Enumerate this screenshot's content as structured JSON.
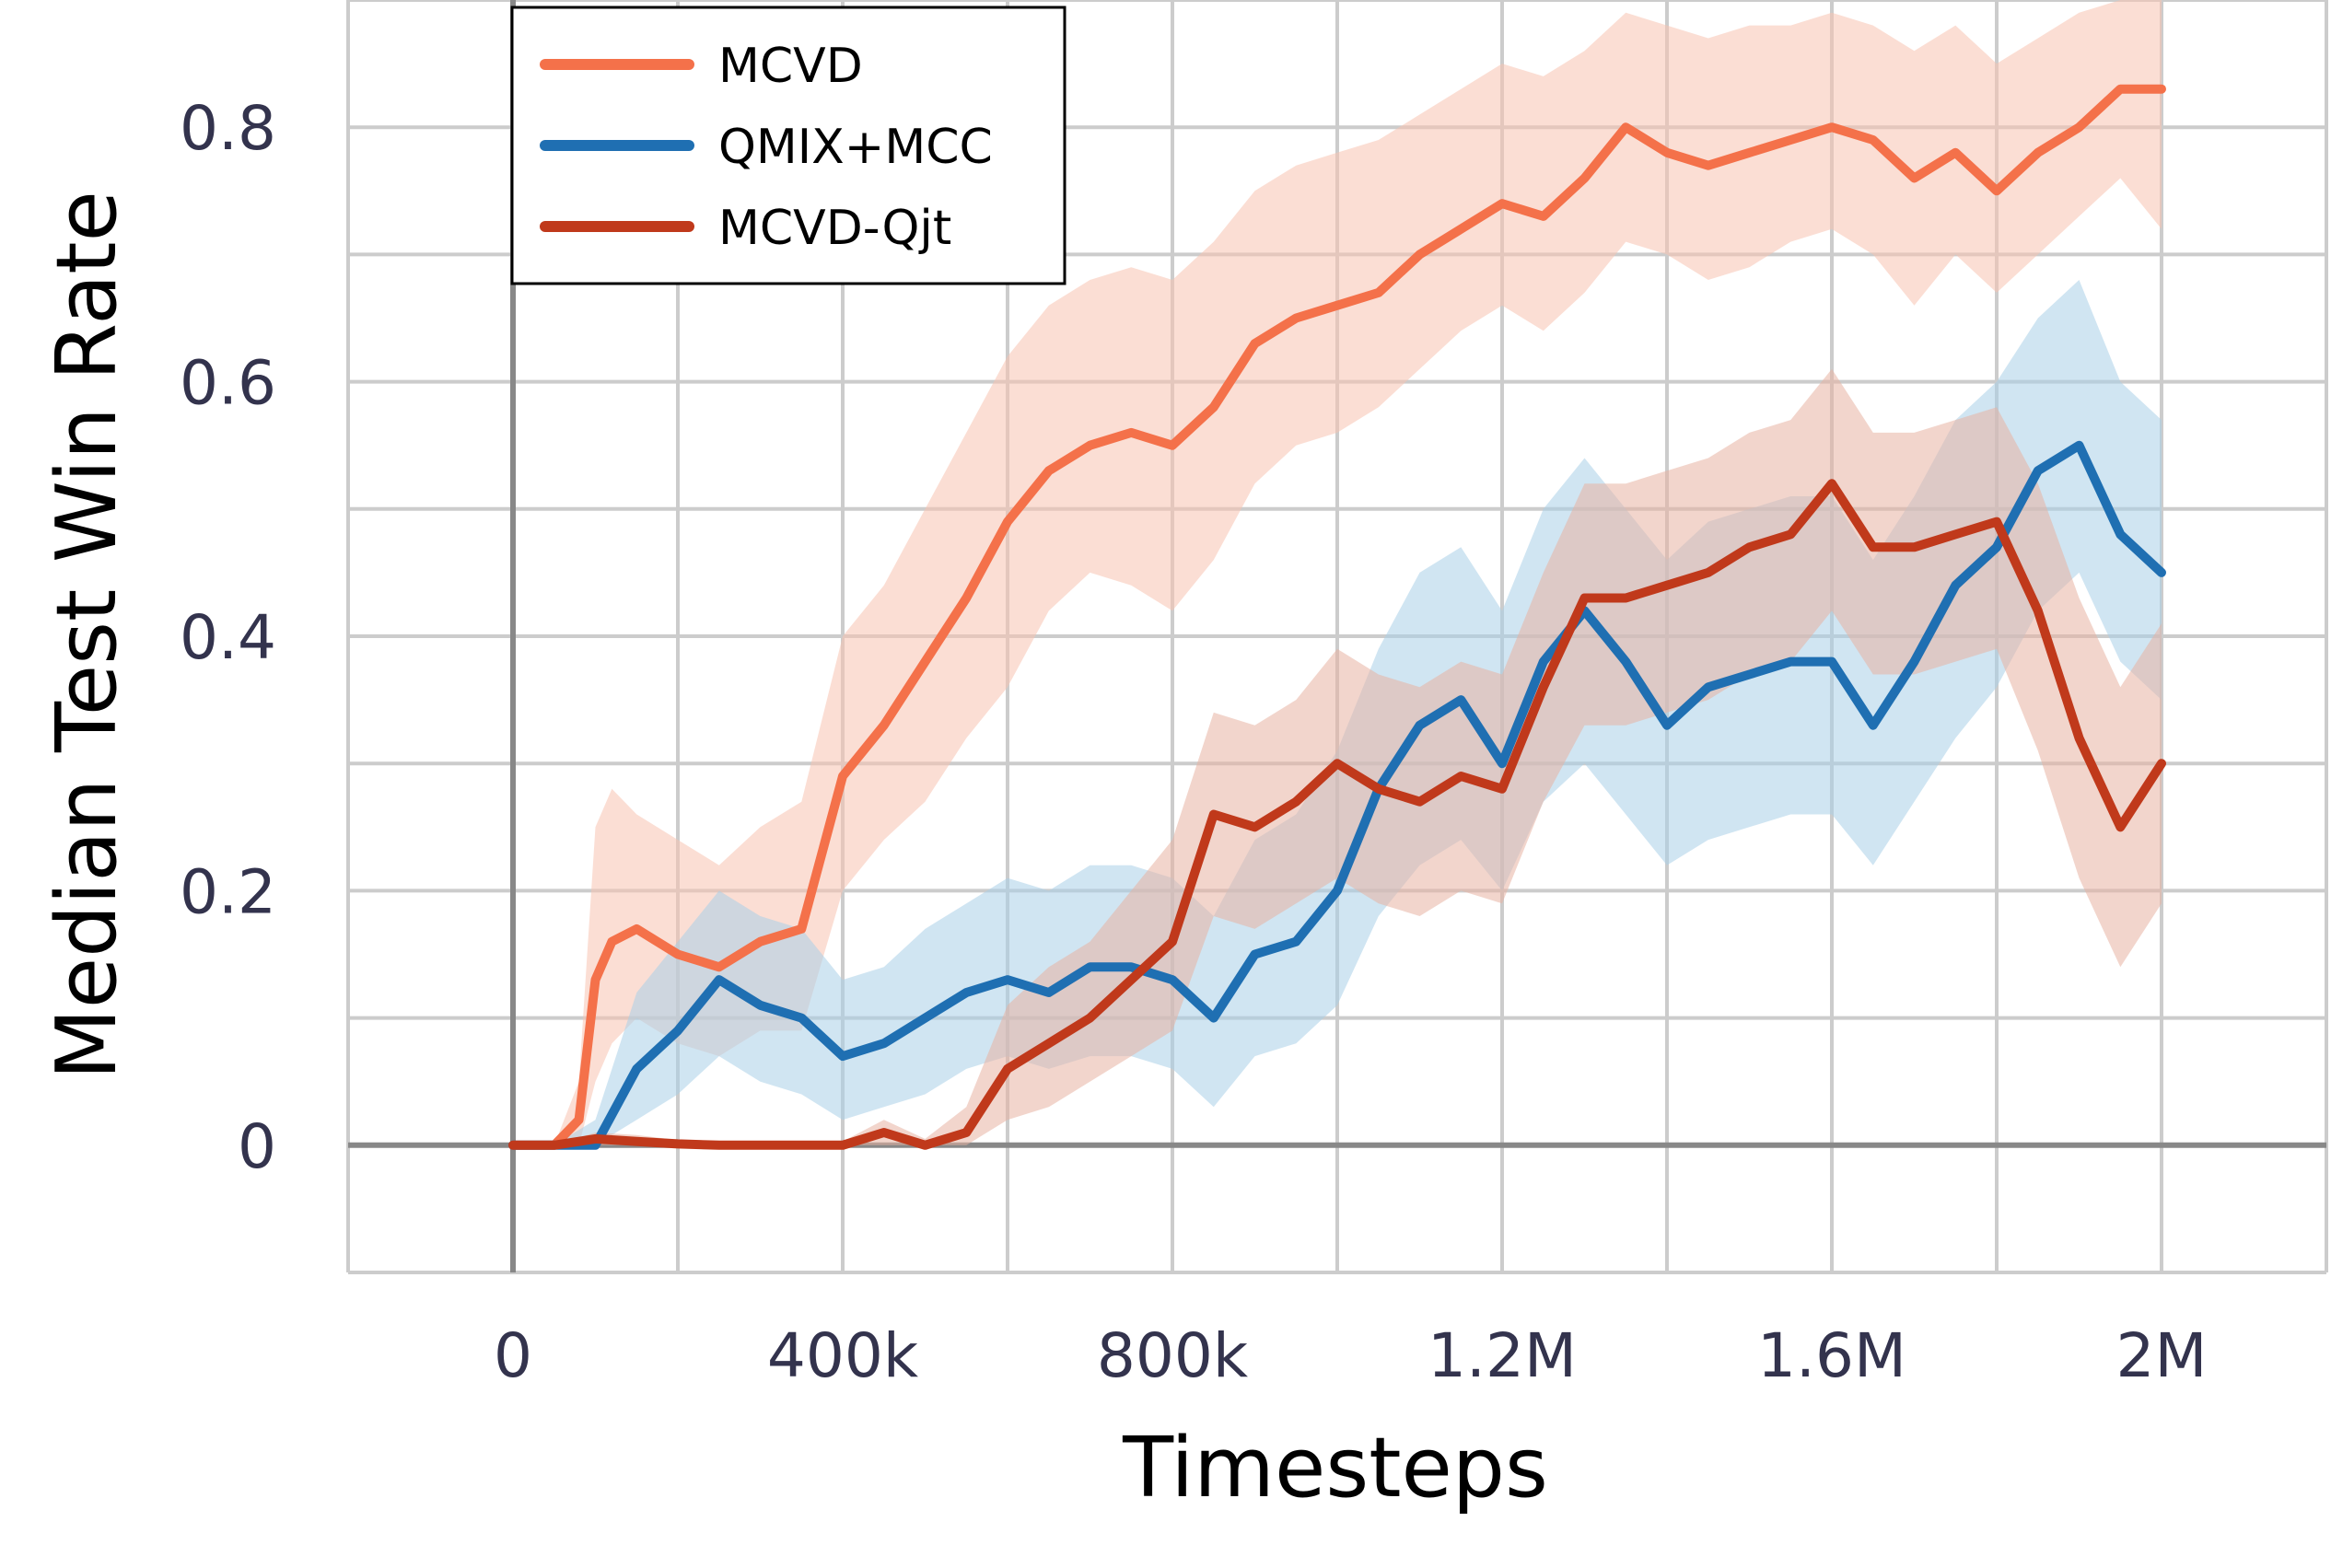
{
  "chart_data": {
    "type": "line",
    "title": "",
    "xlabel": "Timesteps",
    "ylabel": "Median Test Win Rate",
    "xlim": [
      -200000,
      2200000
    ],
    "ylim": [
      -0.1,
      0.9
    ],
    "xticks": [
      0,
      400000,
      800000,
      1200000,
      1600000,
      2000000
    ],
    "xtick_labels": [
      "0",
      "400k",
      "800k",
      "1.2M",
      "1.6M",
      "2M"
    ],
    "yticks": [
      0,
      0.2,
      0.4,
      0.6,
      0.8
    ],
    "ytick_labels": [
      "0",
      "0.2",
      "0.4",
      "0.6",
      "0.8"
    ],
    "grid": true,
    "legend_position": "top-left",
    "series": [
      {
        "name": "MCVD",
        "color": "#f4714a",
        "band_color": "#f7c3b0",
        "x": [
          0,
          50000,
          80000,
          100000,
          120000,
          150000,
          200000,
          250000,
          300000,
          350000,
          400000,
          450000,
          500000,
          550000,
          600000,
          650000,
          700000,
          750000,
          800000,
          850000,
          900000,
          950000,
          1000000,
          1050000,
          1100000,
          1150000,
          1200000,
          1250000,
          1300000,
          1350000,
          1400000,
          1450000,
          1500000,
          1550000,
          1600000,
          1650000,
          1700000,
          1750000,
          1800000,
          1850000,
          1900000,
          1950000,
          2000000
        ],
        "y": [
          0.0,
          0.0,
          0.02,
          0.13,
          0.16,
          0.17,
          0.15,
          0.14,
          0.16,
          0.17,
          0.29,
          0.33,
          0.38,
          0.43,
          0.49,
          0.53,
          0.55,
          0.56,
          0.55,
          0.58,
          0.63,
          0.65,
          0.66,
          0.67,
          0.7,
          0.72,
          0.74,
          0.73,
          0.76,
          0.8,
          0.78,
          0.77,
          0.78,
          0.79,
          0.8,
          0.79,
          0.76,
          0.78,
          0.75,
          0.78,
          0.8,
          0.83,
          0.83
        ],
        "lower": [
          0.0,
          0.0,
          0.0,
          0.05,
          0.08,
          0.1,
          0.08,
          0.07,
          0.09,
          0.09,
          0.2,
          0.24,
          0.27,
          0.32,
          0.36,
          0.42,
          0.45,
          0.44,
          0.42,
          0.46,
          0.52,
          0.55,
          0.56,
          0.58,
          0.61,
          0.64,
          0.66,
          0.64,
          0.67,
          0.71,
          0.7,
          0.68,
          0.69,
          0.71,
          0.72,
          0.7,
          0.66,
          0.7,
          0.67,
          0.7,
          0.73,
          0.76,
          0.72
        ],
        "upper": [
          0.0,
          0.0,
          0.05,
          0.25,
          0.28,
          0.26,
          0.24,
          0.22,
          0.25,
          0.27,
          0.4,
          0.44,
          0.5,
          0.56,
          0.62,
          0.66,
          0.68,
          0.69,
          0.68,
          0.71,
          0.75,
          0.77,
          0.78,
          0.79,
          0.81,
          0.83,
          0.85,
          0.84,
          0.86,
          0.89,
          0.88,
          0.87,
          0.88,
          0.88,
          0.89,
          0.88,
          0.86,
          0.88,
          0.85,
          0.87,
          0.89,
          0.9,
          0.9
        ]
      },
      {
        "name": "QMIX+MCC",
        "color": "#1f6fb2",
        "band_color": "#a9d0e8",
        "x": [
          0,
          50000,
          100000,
          150000,
          200000,
          250000,
          300000,
          350000,
          400000,
          450000,
          500000,
          550000,
          600000,
          650000,
          700000,
          750000,
          800000,
          850000,
          900000,
          950000,
          1000000,
          1050000,
          1100000,
          1150000,
          1200000,
          1250000,
          1300000,
          1350000,
          1400000,
          1450000,
          1500000,
          1550000,
          1600000,
          1650000,
          1700000,
          1750000,
          1800000,
          1850000,
          1900000,
          1950000,
          2000000
        ],
        "y": [
          0.0,
          0.0,
          0.0,
          0.06,
          0.09,
          0.13,
          0.11,
          0.1,
          0.07,
          0.08,
          0.1,
          0.12,
          0.13,
          0.12,
          0.14,
          0.14,
          0.13,
          0.1,
          0.15,
          0.16,
          0.2,
          0.28,
          0.33,
          0.35,
          0.3,
          0.38,
          0.42,
          0.38,
          0.33,
          0.36,
          0.37,
          0.38,
          0.38,
          0.33,
          0.38,
          0.44,
          0.47,
          0.53,
          0.55,
          0.48,
          0.45
        ],
        "lower": [
          0.0,
          0.0,
          0.0,
          0.02,
          0.04,
          0.07,
          0.05,
          0.04,
          0.02,
          0.03,
          0.04,
          0.06,
          0.07,
          0.06,
          0.07,
          0.07,
          0.06,
          0.03,
          0.07,
          0.08,
          0.11,
          0.18,
          0.22,
          0.24,
          0.2,
          0.27,
          0.3,
          0.26,
          0.22,
          0.24,
          0.25,
          0.26,
          0.26,
          0.22,
          0.27,
          0.32,
          0.36,
          0.42,
          0.45,
          0.38,
          0.35
        ],
        "upper": [
          0.0,
          0.0,
          0.02,
          0.12,
          0.16,
          0.2,
          0.18,
          0.17,
          0.13,
          0.14,
          0.17,
          0.19,
          0.21,
          0.2,
          0.22,
          0.22,
          0.21,
          0.18,
          0.24,
          0.26,
          0.31,
          0.39,
          0.45,
          0.47,
          0.42,
          0.5,
          0.54,
          0.5,
          0.46,
          0.49,
          0.5,
          0.51,
          0.51,
          0.46,
          0.51,
          0.57,
          0.6,
          0.65,
          0.68,
          0.6,
          0.57
        ]
      },
      {
        "name": "MCVD-Qjt",
        "color": "#c0391b",
        "band_color": "#e7b2a3",
        "x": [
          0,
          50000,
          100000,
          150000,
          200000,
          250000,
          300000,
          350000,
          400000,
          450000,
          500000,
          550000,
          600000,
          650000,
          700000,
          750000,
          800000,
          850000,
          900000,
          950000,
          1000000,
          1050000,
          1100000,
          1150000,
          1200000,
          1250000,
          1300000,
          1350000,
          1400000,
          1450000,
          1500000,
          1550000,
          1600000,
          1650000,
          1700000,
          1750000,
          1800000,
          1850000,
          1900000,
          1950000,
          2000000
        ],
        "y": [
          0.0,
          0.0,
          0.005,
          0.003,
          0.001,
          0.0,
          0.0,
          0.0,
          0.0,
          0.01,
          0.0,
          0.01,
          0.06,
          0.08,
          0.1,
          0.13,
          0.16,
          0.26,
          0.25,
          0.27,
          0.3,
          0.28,
          0.27,
          0.29,
          0.28,
          0.36,
          0.43,
          0.43,
          0.44,
          0.45,
          0.47,
          0.48,
          0.52,
          0.47,
          0.47,
          0.48,
          0.49,
          0.42,
          0.32,
          0.25,
          0.3
        ],
        "lower": [
          0.0,
          0.0,
          0.0,
          0.0,
          0.0,
          0.0,
          0.0,
          0.0,
          0.0,
          0.0,
          0.0,
          0.0,
          0.02,
          0.03,
          0.05,
          0.07,
          0.09,
          0.18,
          0.17,
          0.19,
          0.21,
          0.19,
          0.18,
          0.2,
          0.19,
          0.27,
          0.33,
          0.33,
          0.34,
          0.35,
          0.37,
          0.38,
          0.42,
          0.37,
          0.37,
          0.38,
          0.39,
          0.31,
          0.21,
          0.14,
          0.19
        ],
        "upper": [
          0.0,
          0.0,
          0.01,
          0.008,
          0.004,
          0.003,
          0.003,
          0.003,
          0.003,
          0.02,
          0.005,
          0.03,
          0.11,
          0.14,
          0.16,
          0.2,
          0.24,
          0.34,
          0.33,
          0.35,
          0.39,
          0.37,
          0.36,
          0.38,
          0.37,
          0.45,
          0.52,
          0.52,
          0.53,
          0.54,
          0.56,
          0.57,
          0.61,
          0.56,
          0.56,
          0.57,
          0.58,
          0.52,
          0.43,
          0.36,
          0.41
        ]
      }
    ]
  }
}
